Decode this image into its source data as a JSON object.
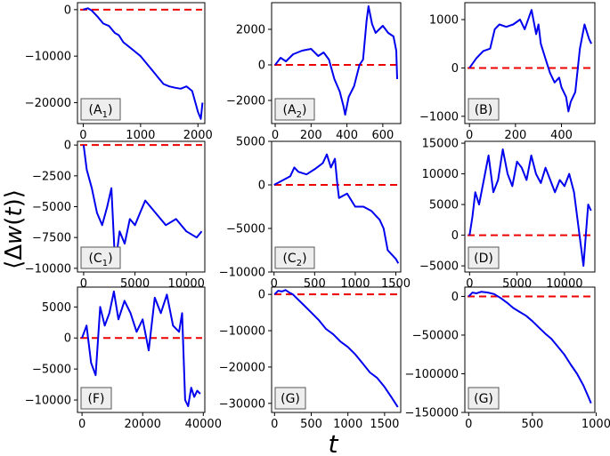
{
  "figure": {
    "ylabel_parts": [
      "⟨Δ",
      "w",
      "(",
      "t",
      ")⟩"
    ],
    "xlabel": "t"
  },
  "colors": {
    "walk": "#0000ee",
    "baseline": "#ee0000",
    "label_bg": "#eeeeee"
  },
  "chart_data": [
    {
      "id": "A1",
      "type": "line",
      "label_main": "(A",
      "label_sub": "1",
      "label_end": ")",
      "xlim": [
        -100,
        2120
      ],
      "ylim": [
        -24500,
        1500
      ],
      "xticks": [
        0,
        1000,
        2000
      ],
      "xtick_labels": [
        "0",
        "1000",
        "2000"
      ],
      "yticks": [
        0,
        -10000,
        -20000
      ],
      "ytick_labels": [
        "0",
        "−10000",
        "−20000"
      ],
      "baseline": 0,
      "series": [
        {
          "x": [
            0,
            80,
            150,
            250,
            350,
            450,
            550,
            620,
            700,
            800,
            900,
            1000,
            1100,
            1200,
            1300,
            1400,
            1500,
            1600,
            1700,
            1800,
            1900,
            2000,
            2050,
            2080
          ],
          "y": [
            0,
            300,
            -200,
            -1500,
            -3000,
            -3500,
            -5000,
            -5500,
            -7000,
            -8000,
            -9000,
            -10000,
            -11500,
            -13000,
            -14500,
            -16000,
            -16500,
            -16800,
            -17000,
            -16500,
            -17500,
            -22000,
            -23500,
            -20000
          ]
        }
      ]
    },
    {
      "id": "A2",
      "type": "line",
      "label_main": "(A",
      "label_sub": "2",
      "label_end": ")",
      "xlim": [
        -20,
        700
      ],
      "ylim": [
        -3300,
        3500
      ],
      "xticks": [
        0,
        200,
        400,
        600
      ],
      "xtick_labels": [
        "0",
        "200",
        "400",
        "600"
      ],
      "yticks": [
        2000,
        0,
        -2000
      ],
      "ytick_labels": [
        "2000",
        "0",
        "−2000"
      ],
      "baseline": 0,
      "series": [
        {
          "x": [
            0,
            30,
            60,
            100,
            150,
            200,
            240,
            270,
            300,
            330,
            360,
            380,
            390,
            410,
            440,
            470,
            490,
            510,
            520,
            540,
            560,
            580,
            600,
            630,
            660,
            675,
            680
          ],
          "y": [
            0,
            400,
            200,
            600,
            800,
            900,
            500,
            700,
            300,
            -800,
            -1500,
            -2300,
            -2800,
            -1800,
            -1200,
            0,
            300,
            2500,
            3300,
            2300,
            1800,
            2000,
            2200,
            1800,
            1600,
            800,
            -800
          ]
        }
      ]
    },
    {
      "id": "B",
      "type": "line",
      "label_main": "(B",
      "label_sub": "",
      "label_end": ")",
      "xlim": [
        -20,
        545
      ],
      "ylim": [
        -1150,
        1350
      ],
      "xticks": [
        0,
        200,
        400
      ],
      "xtick_labels": [
        "0",
        "200",
        "400"
      ],
      "yticks": [
        1000,
        0,
        -1000
      ],
      "ytick_labels": [
        "1000",
        "0",
        "−1000"
      ],
      "baseline": 0,
      "series": [
        {
          "x": [
            0,
            30,
            60,
            90,
            110,
            130,
            160,
            190,
            220,
            240,
            270,
            290,
            300,
            310,
            330,
            350,
            370,
            390,
            400,
            420,
            430,
            440,
            460,
            480,
            500,
            520,
            530
          ],
          "y": [
            0,
            200,
            350,
            400,
            800,
            900,
            850,
            900,
            1000,
            800,
            1200,
            700,
            900,
            500,
            200,
            -100,
            -300,
            -200,
            -400,
            -600,
            -900,
            -700,
            -500,
            400,
            900,
            600,
            500
          ]
        }
      ]
    },
    {
      "id": "C1",
      "type": "line",
      "label_main": "(C",
      "label_sub": "1",
      "label_end": ")",
      "xlim": [
        -600,
        11800
      ],
      "ylim": [
        -10300,
        300
      ],
      "xticks": [
        0,
        5000,
        10000
      ],
      "xtick_labels": [
        "0",
        "5000",
        "10000"
      ],
      "yticks": [
        0,
        -2500,
        -5000,
        -7500,
        -10000
      ],
      "ytick_labels": [
        "0",
        "−2500",
        "−5000",
        "−7500",
        "−10000"
      ],
      "baseline": 0,
      "series": [
        {
          "x": [
            0,
            300,
            800,
            1300,
            1800,
            2300,
            2700,
            3000,
            3200,
            3500,
            4000,
            4500,
            5000,
            5500,
            6000,
            7000,
            8000,
            9000,
            10000,
            11000,
            11500
          ],
          "y": [
            0,
            -2000,
            -3500,
            -5500,
            -6500,
            -5000,
            -3500,
            -8500,
            -9000,
            -7000,
            -8000,
            -6000,
            -6500,
            -5500,
            -4500,
            -5500,
            -6500,
            -6000,
            -7000,
            -7500,
            -7000
          ]
        }
      ]
    },
    {
      "id": "C2",
      "type": "line",
      "label_main": "(C",
      "label_sub": "2",
      "label_end": ")",
      "xlim": [
        -30,
        1560
      ],
      "ylim": [
        -10000,
        5000
      ],
      "xticks": [
        0,
        500,
        1000,
        1500
      ],
      "xtick_labels": [
        "0",
        "500",
        "1000",
        "1500"
      ],
      "yticks": [
        5000,
        0,
        -5000,
        -10000
      ],
      "ytick_labels": [
        "5000",
        "0",
        "−5000",
        "−10000"
      ],
      "baseline": 0,
      "series": [
        {
          "x": [
            0,
            100,
            200,
            250,
            300,
            400,
            500,
            600,
            650,
            700,
            750,
            780,
            800,
            900,
            1000,
            1100,
            1200,
            1250,
            1300,
            1350,
            1400,
            1450,
            1500,
            1530
          ],
          "y": [
            0,
            500,
            1000,
            2000,
            1500,
            1200,
            1800,
            2500,
            3500,
            2000,
            3000,
            0,
            -1500,
            -1000,
            -2500,
            -2500,
            -3000,
            -3500,
            -4000,
            -5000,
            -7500,
            -8000,
            -8500,
            -9000
          ]
        }
      ]
    },
    {
      "id": "D",
      "type": "line",
      "label_main": "(D",
      "label_sub": "",
      "label_end": ")",
      "xlim": [
        -500,
        13200
      ],
      "ylim": [
        -6000,
        15300
      ],
      "xticks": [
        0,
        5000,
        10000
      ],
      "xtick_labels": [
        "0",
        "5000",
        "10000"
      ],
      "yticks": [
        15000,
        10000,
        5000,
        0,
        -5000
      ],
      "ytick_labels": [
        "15000",
        "10000",
        "5000",
        "0",
        "−5000"
      ],
      "baseline": 0,
      "series": [
        {
          "x": [
            0,
            300,
            600,
            1000,
            1500,
            2000,
            2500,
            3000,
            3500,
            4000,
            4500,
            5000,
            5500,
            6000,
            6500,
            7000,
            7500,
            8000,
            8500,
            9000,
            9500,
            10000,
            10500,
            11000,
            11500,
            12000,
            12500,
            12800
          ],
          "y": [
            0,
            3000,
            7000,
            5000,
            9000,
            13000,
            7000,
            9000,
            14000,
            10000,
            8000,
            12000,
            11000,
            9000,
            13000,
            10000,
            8500,
            11000,
            9000,
            7000,
            9000,
            8000,
            10000,
            7000,
            1000,
            -5000,
            5000,
            4000
          ]
        }
      ]
    },
    {
      "id": "F",
      "type": "line",
      "label_main": "(F",
      "label_sub": "",
      "label_end": ")",
      "xlim": [
        -1500,
        40500
      ],
      "ylim": [
        -12000,
        8200
      ],
      "xticks": [
        0,
        20000,
        40000
      ],
      "xtick_labels": [
        "0",
        "20000",
        "40000"
      ],
      "yticks": [
        5000,
        0,
        -5000,
        -10000
      ],
      "ytick_labels": [
        "5000",
        "0",
        "−5000",
        "−10000"
      ],
      "baseline": 0,
      "series": [
        {
          "x": [
            0,
            1500,
            3000,
            4500,
            6000,
            7500,
            9000,
            10500,
            12000,
            14000,
            16000,
            18000,
            20000,
            22000,
            24000,
            26000,
            28000,
            30000,
            32000,
            33000,
            34000,
            35000,
            36000,
            37000,
            38000,
            39000
          ],
          "y": [
            0,
            2000,
            -4000,
            -6000,
            5000,
            2000,
            4000,
            7500,
            3000,
            6000,
            4000,
            1000,
            3000,
            -2000,
            6500,
            4000,
            7000,
            2000,
            1000,
            4000,
            -10000,
            -11000,
            -8000,
            -9500,
            -8500,
            -9000
          ]
        }
      ]
    },
    {
      "id": "G_left",
      "type": "line",
      "label_main": "(G",
      "label_sub": "",
      "label_end": ")",
      "xlim": [
        -40,
        1720
      ],
      "ylim": [
        -32500,
        2000
      ],
      "xticks": [
        0,
        500,
        1000,
        1500
      ],
      "xtick_labels": [
        "0",
        "500",
        "1000",
        "1500"
      ],
      "yticks": [
        0,
        -10000,
        -20000,
        -30000
      ],
      "ytick_labels": [
        "0",
        "−10000",
        "−20000",
        "−30000"
      ],
      "baseline": 0,
      "series": [
        {
          "x": [
            0,
            50,
            100,
            150,
            200,
            250,
            300,
            400,
            500,
            600,
            700,
            800,
            900,
            1000,
            1100,
            1200,
            1300,
            1400,
            1500,
            1600,
            1680
          ],
          "y": [
            0,
            1000,
            800,
            1200,
            500,
            0,
            -1000,
            -3000,
            -5000,
            -7000,
            -9500,
            -11000,
            -13000,
            -14500,
            -16500,
            -19000,
            -21500,
            -23000,
            -25500,
            -28500,
            -31000
          ]
        }
      ]
    },
    {
      "id": "G_right",
      "type": "line",
      "label_main": "(G",
      "label_sub": "",
      "label_end": ")",
      "xlim": [
        -30,
        990
      ],
      "ylim": [
        -150000,
        12000
      ],
      "xticks": [
        0,
        500,
        1000
      ],
      "xtick_labels": [
        "0",
        "500",
        "1000"
      ],
      "yticks": [
        0,
        -50000,
        -100000,
        -150000
      ],
      "ytick_labels": [
        "0",
        "−50000",
        "−100000",
        "−150000"
      ],
      "baseline": 0,
      "series": [
        {
          "x": [
            0,
            30,
            60,
            100,
            150,
            200,
            250,
            300,
            350,
            400,
            450,
            500,
            550,
            600,
            650,
            700,
            750,
            800,
            850,
            900,
            940,
            960
          ],
          "y": [
            0,
            5000,
            4000,
            6000,
            5000,
            3000,
            -2000,
            -8000,
            -15000,
            -20000,
            -25000,
            -32000,
            -40000,
            -48000,
            -55000,
            -65000,
            -75000,
            -88000,
            -100000,
            -115000,
            -130000,
            -138000
          ]
        }
      ]
    }
  ]
}
